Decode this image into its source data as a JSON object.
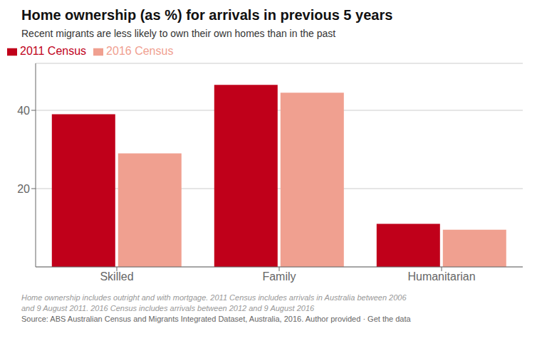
{
  "chart_data": {
    "type": "bar",
    "title": "Home ownership (as %) for arrivals in previous 5 years",
    "subtitle": "Recent migrants are less likely to own their own homes than in the past",
    "categories": [
      "Skilled",
      "Family",
      "Humanitarian"
    ],
    "series": [
      {
        "name": "2011 Census",
        "color": "#c0001a",
        "values": [
          39,
          46.5,
          11
        ]
      },
      {
        "name": "2016 Census",
        "color": "#f0a090",
        "values": [
          29,
          44.5,
          9.5
        ]
      }
    ],
    "ylim": [
      0,
      52
    ],
    "yticks": [
      20,
      40
    ],
    "grid": true,
    "legend": "top left",
    "annotations": [
      "Home ownership includes outright and with mortgage. 2011 Census includes arrivals in Australia between 2006",
      "and 9 August 2011. 2016 Census includes arrivals between 2012 and 9 August 2016",
      "Source: ABS Australian Census and Migrants Integrated Dataset, Australia, 2016. Author provided · Get the data"
    ]
  }
}
